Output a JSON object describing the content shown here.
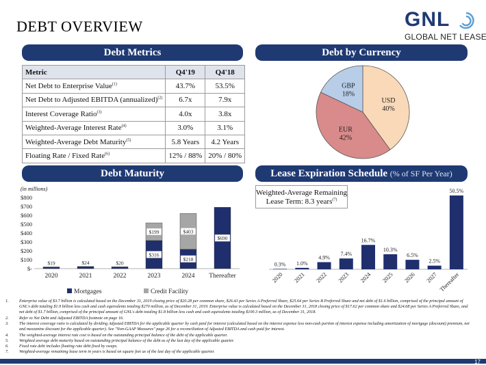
{
  "title": "DEBT OVERVIEW",
  "logo": {
    "brand": "GNL",
    "tagline": "GLOBAL NET LEASE"
  },
  "sections": {
    "debt_metrics": "Debt Metrics",
    "debt_by_currency": "Debt by Currency",
    "debt_maturity": "Debt Maturity",
    "lease_expiration": "Lease Expiration Schedule",
    "lease_expiration_suffix": "(% of SF Per Year)"
  },
  "metrics_table": {
    "headers": [
      "Metric",
      "Q4'19",
      "Q4'18"
    ],
    "rows": [
      {
        "metric": "Net Debt to Enterprise Value",
        "sup": "(1)",
        "q419": "43.7%",
        "q418": "53.5%"
      },
      {
        "metric": "Net Debt to Adjusted EBITDA (annualized)",
        "sup": "(2)",
        "q419": "6.7x",
        "q418": "7.9x"
      },
      {
        "metric": "Interest Coverage Ratio",
        "sup": "(3)",
        "q419": "4.0x",
        "q418": "3.8x"
      },
      {
        "metric": "Weighted-Average Interest Rate",
        "sup": "(4)",
        "q419": "3.0%",
        "q418": "3.1%"
      },
      {
        "metric": "Weighted-Average Debt Maturity",
        "sup": "(5)",
        "q419": "5.8 Years",
        "q418": "4.2 Years"
      },
      {
        "metric": "Floating Rate / Fixed Rate",
        "sup": "(6)",
        "q419": "12% / 88%",
        "q418": "20% / 80%"
      }
    ]
  },
  "maturity_note": "(in millions)",
  "lease_box": {
    "line1": "Weighted-Average Remaining",
    "line2": "Lease Term: 8.3 years",
    "sup": "(7)"
  },
  "chart_data": [
    {
      "type": "pie",
      "title": "Debt by Currency",
      "labels": [
        "USD",
        "EUR",
        "GBP"
      ],
      "values": [
        40,
        42,
        18
      ],
      "value_labels": [
        "40%",
        "42%",
        "18%"
      ],
      "colors": [
        "#fad9b8",
        "#d98a8a",
        "#b7cde8"
      ]
    },
    {
      "type": "bar",
      "stacked": true,
      "title": "Debt Maturity",
      "categories": [
        "2020",
        "2021",
        "2022",
        "2023",
        "2024",
        "Thereafter"
      ],
      "ylim": [
        0,
        800
      ],
      "yticks": [
        "$-",
        "$100",
        "$200",
        "$300",
        "$400",
        "$500",
        "$600",
        "$700",
        "$800"
      ],
      "series": [
        {
          "name": "Mortgages",
          "color": "#1f2f6e",
          "values": [
            19,
            24,
            20,
            316,
            218,
            690
          ],
          "labels": [
            "$19",
            "$24",
            "$20",
            "$316",
            "$218",
            "$690"
          ]
        },
        {
          "name": "Credit Facility",
          "color": "#a6a6a6",
          "values": [
            0,
            0,
            0,
            199,
            403,
            0
          ],
          "labels": [
            "",
            "",
            "",
            "$199",
            "$403",
            ""
          ]
        }
      ]
    },
    {
      "type": "bar",
      "title": "Lease Expiration Schedule",
      "categories": [
        "2020",
        "2021",
        "2022",
        "2023",
        "2024",
        "2025",
        "2026",
        "2027",
        "Thereafter"
      ],
      "values": [
        0.3,
        1.0,
        4.9,
        7.4,
        16.7,
        10.3,
        6.5,
        2.5,
        50.5
      ],
      "labels": [
        "0.3%",
        "1.0%",
        "4.9%",
        "7.4%",
        "16.7%",
        "10.3%",
        "6.5%",
        "2.5%",
        "50.5%"
      ],
      "color": "#1f2f6e"
    }
  ],
  "footnotes": [
    {
      "n": "1.",
      "text": "Enterprise value of $3.7 billion is calculated based on the December 31, 2019 closing price of $20.28 per common share, $26.43 per Series A Preferred Share, $25.64 per Series B Preferred Share and net debt of $1.6 billion, comprised of the principal amount of GNL's debt totaling $1.9 billion less cash and cash equivalents totaling $270 million, as of December 31, 2019. Enterprise value is calculated based on the December 31, 2018 closing price of $17.62 per common share and $24.68 per Series A Preferred Share, and net debt of $1.7 billion, comprised of the principal amount of GNL's debt totaling $1.8 billion less cash and cash equivalents totaling $100.3 million, as of December 31, 2018."
    },
    {
      "n": "2.",
      "text": "Refer to Net Debt and Adjusted EBITDA footnote on page 16."
    },
    {
      "n": "3.",
      "text": "The interest coverage ratio is calculated by dividing Adjusted EBITDA for the applicable quarter by cash paid for interest (calculated based on the interest expense less non-cash portion of interest expense including amortization of mortgage (discount) premium, net and mezzanine discount for the applicable quarter). See \"Non-GAAP Measures\" page 26 for a reconciliation of Adjusted EBITDA and cash paid for interest."
    },
    {
      "n": "4.",
      "text": "The weighted-average interest rate cost is based on the outstanding principal balance of the debt of the applicable quarter."
    },
    {
      "n": "5.",
      "text": "Weighted average debt maturity based on outstanding principal balance of the debt as of the last day of the applicable quarter."
    },
    {
      "n": "6.",
      "text": "Fixed rate debt includes floating rate debt fixed by swaps."
    },
    {
      "n": "7.",
      "text": "Weighted-average remaining lease term in years is based on square feet as of the last day of the applicable quarter."
    }
  ],
  "page_number": "17"
}
